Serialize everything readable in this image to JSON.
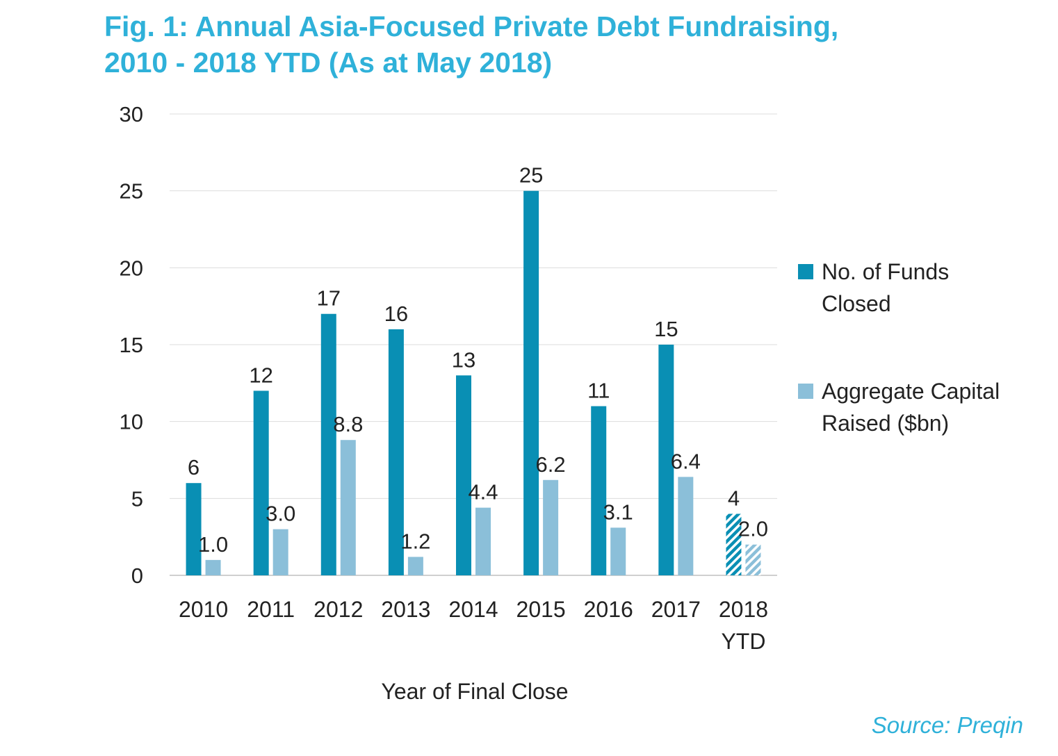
{
  "title_lines": [
    "Fig. 1: Annual Asia-Focused Private Debt Fundraising,",
    "2010 - 2018 YTD (As at May 2018)"
  ],
  "source": "Source: Preqin",
  "colors": {
    "funds": "#098fb4",
    "capital": "#8bbfd9",
    "grid": "#dddddd",
    "title": "#2fb1d9"
  },
  "chart_data": {
    "type": "bar",
    "title": "Annual Asia-Focused Private Debt Fundraising, 2010 - 2018 YTD (As at May 2018)",
    "xlabel": "Year of Final Close",
    "ylabel": "",
    "ylim": [
      0,
      30
    ],
    "yticks": [
      0,
      5,
      10,
      15,
      20,
      25,
      30
    ],
    "categories": [
      "2010",
      "2011",
      "2012",
      "2013",
      "2014",
      "2015",
      "2016",
      "2017",
      "2018 YTD"
    ],
    "category_lines": [
      [
        "2010"
      ],
      [
        "2011"
      ],
      [
        "2012"
      ],
      [
        "2013"
      ],
      [
        "2014"
      ],
      [
        "2015"
      ],
      [
        "2016"
      ],
      [
        "2017"
      ],
      [
        "2018",
        "YTD"
      ]
    ],
    "series": [
      {
        "name": "No. of Funds Closed",
        "values": [
          6,
          12,
          17,
          16,
          13,
          25,
          11,
          15,
          4
        ],
        "labels": [
          "6",
          "12",
          "17",
          "16",
          "13",
          "25",
          "11",
          "15",
          "4"
        ]
      },
      {
        "name": "Aggregate Capital Raised ($bn)",
        "values": [
          1.0,
          3.0,
          8.8,
          1.2,
          4.4,
          6.2,
          3.1,
          6.4,
          2.0
        ],
        "labels": [
          "1.0",
          "3.0",
          "8.8",
          "1.2",
          "4.4",
          "6.2",
          "3.1",
          "6.4",
          "2.0"
        ]
      }
    ],
    "hatched_categories": [
      "2018 YTD"
    ],
    "legend": {
      "position": "right",
      "entries": [
        {
          "lines": [
            "No. of Funds",
            "Closed"
          ]
        },
        {
          "lines": [
            "Aggregate Capital",
            "Raised ($bn)"
          ]
        }
      ]
    }
  }
}
